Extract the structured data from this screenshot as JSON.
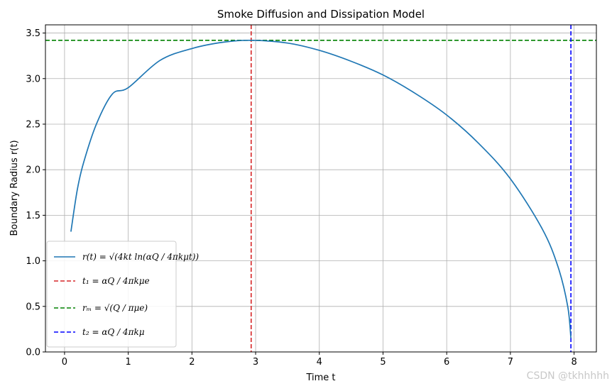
{
  "chart_data": {
    "type": "line",
    "title": "Smoke Diffusion and Dissipation Model",
    "xlabel": "Time t",
    "ylabel": "Boundary Radius r(t)",
    "xlim": [
      -0.3,
      8.35
    ],
    "ylim": [
      0.0,
      3.59
    ],
    "xticks": [
      0,
      1,
      2,
      3,
      4,
      5,
      6,
      7,
      8
    ],
    "yticks": [
      0.0,
      0.5,
      1.0,
      1.5,
      2.0,
      2.5,
      3.0,
      3.5
    ],
    "grid": true,
    "legend_position": "lower-left",
    "series": [
      {
        "name": "r(t) = √(4kt ln(αQ / 4πkμt))",
        "color": "#1f77b4",
        "style": "solid",
        "x": [
          0.1,
          0.2,
          0.3,
          0.5,
          0.75,
          1.0,
          1.5,
          2.0,
          2.5,
          2.93,
          3.5,
          4.0,
          4.5,
          5.0,
          5.5,
          6.0,
          6.5,
          7.0,
          7.5,
          7.75,
          7.9,
          7.95
        ],
        "y": [
          1.32,
          1.78,
          2.08,
          2.5,
          2.83,
          2.9,
          3.2,
          3.33,
          3.4,
          3.42,
          3.39,
          3.31,
          3.19,
          3.04,
          2.84,
          2.6,
          2.29,
          1.9,
          1.35,
          0.93,
          0.5,
          0.15
        ]
      }
    ],
    "reference_lines": [
      {
        "name": "t₁ = αQ / 4πkμe",
        "orientation": "vertical",
        "value": 2.93,
        "color": "#d62728",
        "style": "dashed"
      },
      {
        "name": "rₘ = √(Q / πμe)",
        "orientation": "horizontal",
        "value": 3.42,
        "color": "#008000",
        "style": "dashed"
      },
      {
        "name": "t₂ = αQ / 4πkμ",
        "orientation": "vertical",
        "value": 7.95,
        "color": "#0000ff",
        "style": "dashed"
      }
    ]
  },
  "watermark": "CSDN @tkhhhhh"
}
